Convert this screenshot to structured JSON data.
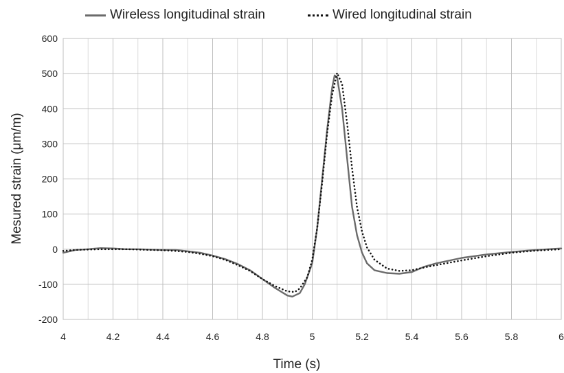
{
  "chart_data": {
    "type": "line",
    "title": "",
    "xlabel": "Time (s)",
    "ylabel": "Mesured strain (μm/m)",
    "xlim": [
      4,
      6
    ],
    "ylim": [
      -200,
      600
    ],
    "xticks": [
      "4",
      "4.2",
      "4.4",
      "4.6",
      "4.8",
      "5",
      "5.2",
      "5.4",
      "5.6",
      "5.8",
      "6"
    ],
    "yticks": [
      "-200",
      "-100",
      "0",
      "100",
      "200",
      "300",
      "400",
      "500",
      "600"
    ],
    "grid": true,
    "legend_position": "top",
    "series": [
      {
        "name": "Wireless longitudinal strain",
        "color": "#6b6b6b",
        "style": "solid",
        "x": [
          4.0,
          4.05,
          4.1,
          4.15,
          4.2,
          4.25,
          4.3,
          4.35,
          4.4,
          4.45,
          4.5,
          4.55,
          4.6,
          4.65,
          4.7,
          4.75,
          4.8,
          4.85,
          4.9,
          4.92,
          4.95,
          4.97,
          5.0,
          5.02,
          5.04,
          5.06,
          5.08,
          5.09,
          5.1,
          5.12,
          5.14,
          5.16,
          5.18,
          5.2,
          5.22,
          5.25,
          5.3,
          5.35,
          5.4,
          5.45,
          5.5,
          5.6,
          5.7,
          5.8,
          5.9,
          6.0
        ],
        "y": [
          -10,
          -2,
          0,
          3,
          2,
          0,
          0,
          -1,
          -2,
          -2,
          -6,
          -10,
          -18,
          -28,
          -42,
          -60,
          -85,
          -110,
          -132,
          -135,
          -125,
          -100,
          -40,
          60,
          200,
          340,
          460,
          495,
          490,
          400,
          260,
          120,
          40,
          -10,
          -40,
          -60,
          -68,
          -70,
          -65,
          -50,
          -40,
          -25,
          -15,
          -8,
          -2,
          2
        ]
      },
      {
        "name": "Wired longitudinal strain",
        "color": "#111111",
        "style": "dotted",
        "x": [
          4.0,
          4.05,
          4.1,
          4.15,
          4.2,
          4.25,
          4.3,
          4.35,
          4.4,
          4.45,
          4.5,
          4.55,
          4.6,
          4.65,
          4.7,
          4.75,
          4.8,
          4.85,
          4.9,
          4.93,
          4.95,
          4.98,
          5.0,
          5.02,
          5.04,
          5.06,
          5.08,
          5.1,
          5.12,
          5.14,
          5.16,
          5.18,
          5.2,
          5.22,
          5.25,
          5.3,
          5.35,
          5.4,
          5.45,
          5.5,
          5.6,
          5.7,
          5.8,
          5.9,
          6.0
        ],
        "y": [
          -5,
          -2,
          -1,
          0,
          0,
          0,
          -1,
          -2,
          -3,
          -5,
          -8,
          -13,
          -20,
          -30,
          -45,
          -62,
          -85,
          -105,
          -120,
          -122,
          -112,
          -80,
          -30,
          60,
          190,
          330,
          440,
          502,
          470,
          360,
          230,
          120,
          50,
          5,
          -30,
          -55,
          -62,
          -60,
          -52,
          -45,
          -32,
          -20,
          -10,
          -4,
          0
        ]
      }
    ]
  }
}
